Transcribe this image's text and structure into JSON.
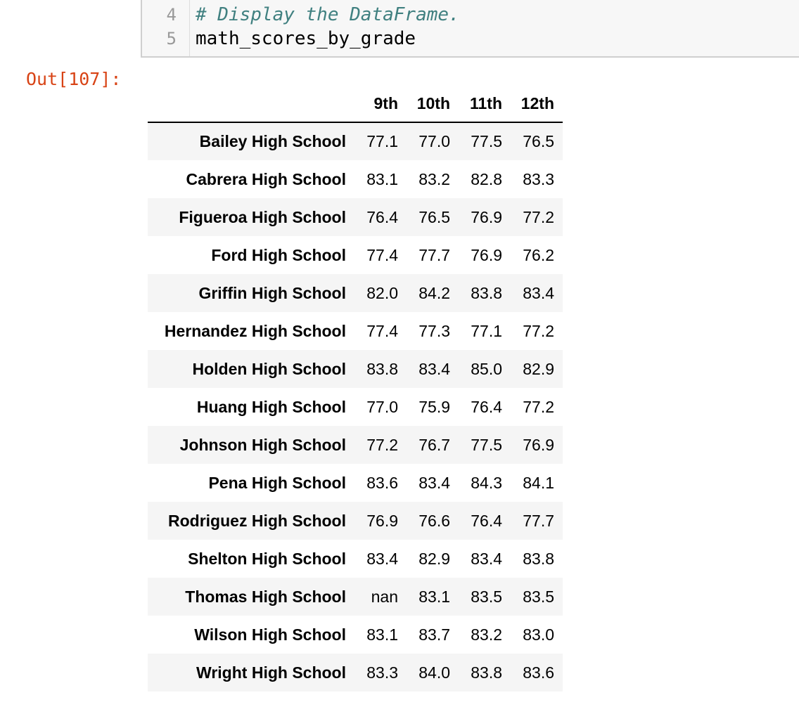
{
  "code_cell": {
    "lines": [
      {
        "number": "4",
        "text": "# Display the DataFrame."
      },
      {
        "number": "5",
        "text": "math_scores_by_grade"
      }
    ]
  },
  "output": {
    "prompt": "Out[107]:",
    "columns": [
      "9th",
      "10th",
      "11th",
      "12th"
    ],
    "rows": [
      {
        "index": "Bailey High School",
        "values": [
          "77.1",
          "77.0",
          "77.5",
          "76.5"
        ]
      },
      {
        "index": "Cabrera High School",
        "values": [
          "83.1",
          "83.2",
          "82.8",
          "83.3"
        ]
      },
      {
        "index": "Figueroa High School",
        "values": [
          "76.4",
          "76.5",
          "76.9",
          "77.2"
        ]
      },
      {
        "index": "Ford High School",
        "values": [
          "77.4",
          "77.7",
          "76.9",
          "76.2"
        ]
      },
      {
        "index": "Griffin High School",
        "values": [
          "82.0",
          "84.2",
          "83.8",
          "83.4"
        ]
      },
      {
        "index": "Hernandez High School",
        "values": [
          "77.4",
          "77.3",
          "77.1",
          "77.2"
        ]
      },
      {
        "index": "Holden High School",
        "values": [
          "83.8",
          "83.4",
          "85.0",
          "82.9"
        ]
      },
      {
        "index": "Huang High School",
        "values": [
          "77.0",
          "75.9",
          "76.4",
          "77.2"
        ]
      },
      {
        "index": "Johnson High School",
        "values": [
          "77.2",
          "76.7",
          "77.5",
          "76.9"
        ]
      },
      {
        "index": "Pena High School",
        "values": [
          "83.6",
          "83.4",
          "84.3",
          "84.1"
        ]
      },
      {
        "index": "Rodriguez High School",
        "values": [
          "76.9",
          "76.6",
          "76.4",
          "77.7"
        ]
      },
      {
        "index": "Shelton High School",
        "values": [
          "83.4",
          "82.9",
          "83.4",
          "83.8"
        ]
      },
      {
        "index": "Thomas High School",
        "values": [
          "nan",
          "83.1",
          "83.5",
          "83.5"
        ]
      },
      {
        "index": "Wilson High School",
        "values": [
          "83.1",
          "83.7",
          "83.2",
          "83.0"
        ]
      },
      {
        "index": "Wright High School",
        "values": [
          "83.3",
          "84.0",
          "83.8",
          "83.6"
        ]
      }
    ]
  },
  "colors": {
    "comment": "#408080",
    "prompt": "#d84315",
    "stripe": "#f5f5f5"
  }
}
